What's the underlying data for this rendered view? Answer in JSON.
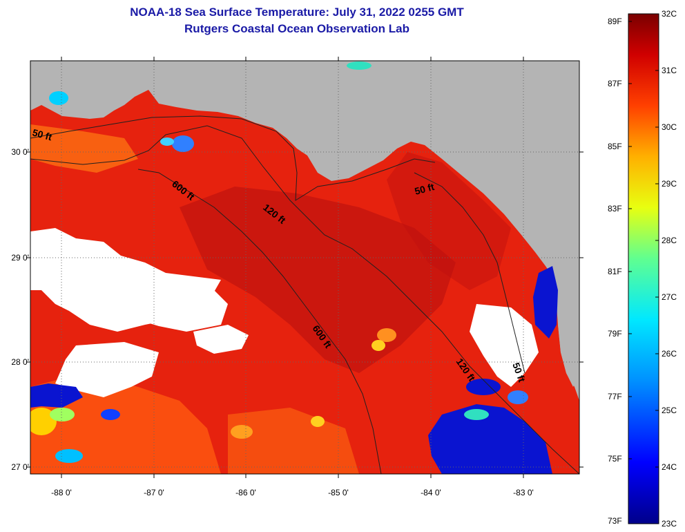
{
  "title": {
    "line1": "NOAA-18 Sea Surface Temperature:  July 31, 2022 0255 GMT",
    "line2": "Rutgers Coastal Ocean Observation Lab"
  },
  "axes": {
    "lat_labels": [
      "30 0'",
      "29 0'",
      "28 0'",
      "27 0'"
    ],
    "lon_labels": [
      "-88 0'",
      "-87 0'",
      "-86 0'",
      "-85 0'",
      "-84 0'",
      "-83 0'"
    ]
  },
  "contours": {
    "isobath_50_west": "50 ft",
    "isobath_600_west": "600 ft",
    "isobath_120_mid": "120 ft",
    "isobath_50_east": "50 ft",
    "isobath_600_south": "600 ft",
    "isobath_120_south": "120 ft",
    "isobath_50_south": "50 ft"
  },
  "colorbar": {
    "f_labels": [
      "89F",
      "87F",
      "85F",
      "83F",
      "81F",
      "79F",
      "77F",
      "75F",
      "73F"
    ],
    "c_labels": [
      "32C",
      "31C",
      "30C",
      "29C",
      "28C",
      "27C",
      "26C",
      "25C",
      "24C",
      "23C"
    ]
  },
  "colors": {
    "land": "#b4b4b4",
    "warm_sea": "#e6220e",
    "cloud_mask": "#ffffff",
    "title_blue": "#1a1aa6"
  }
}
